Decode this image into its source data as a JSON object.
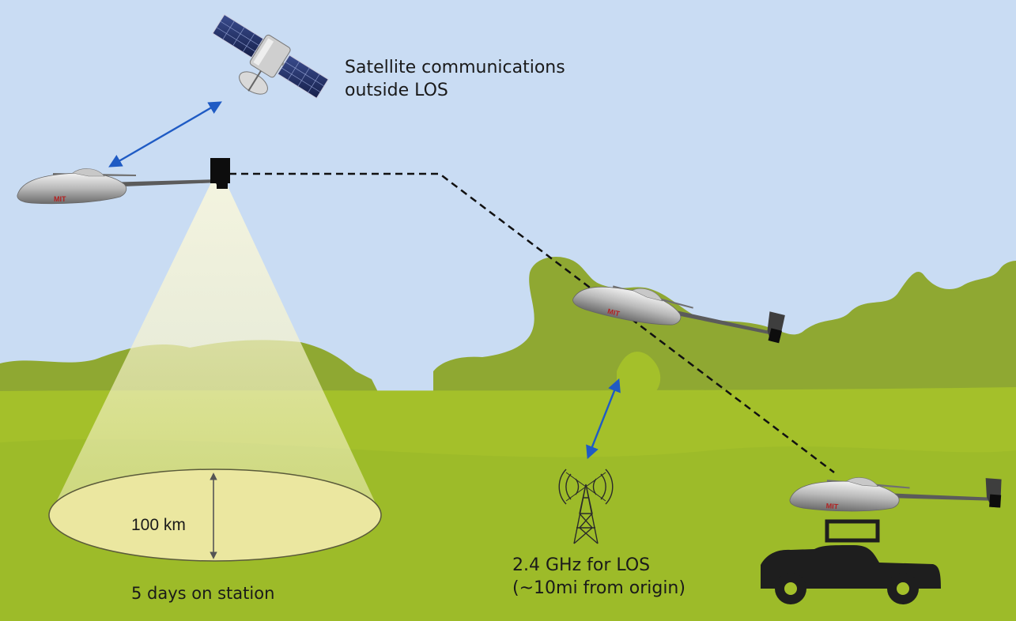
{
  "labels": {
    "satellite_line1": "Satellite communications",
    "satellite_line2": "outside LOS",
    "rf_line1": "2.4 GHz for LOS",
    "rf_line2": "(~10mi from origin)",
    "range": "100 km",
    "endurance": "5 days on station",
    "fuselage_logo": "MIT"
  },
  "colors": {
    "sky": "#c9dcf3",
    "hills_far": "#8fa832",
    "grass": "#a4c02a",
    "grass_dark": "#93ad2a",
    "beam": "#f7f3c6",
    "coverage_ellipse": "#ebe7a0",
    "link_arrow": "#1f5bc4",
    "flight_path": "#111111",
    "vehicle": "#1e1e1e"
  },
  "icons": [
    "satellite-icon",
    "uav-icon",
    "camera-pod-icon",
    "radio-tower-icon",
    "truck-icon"
  ]
}
